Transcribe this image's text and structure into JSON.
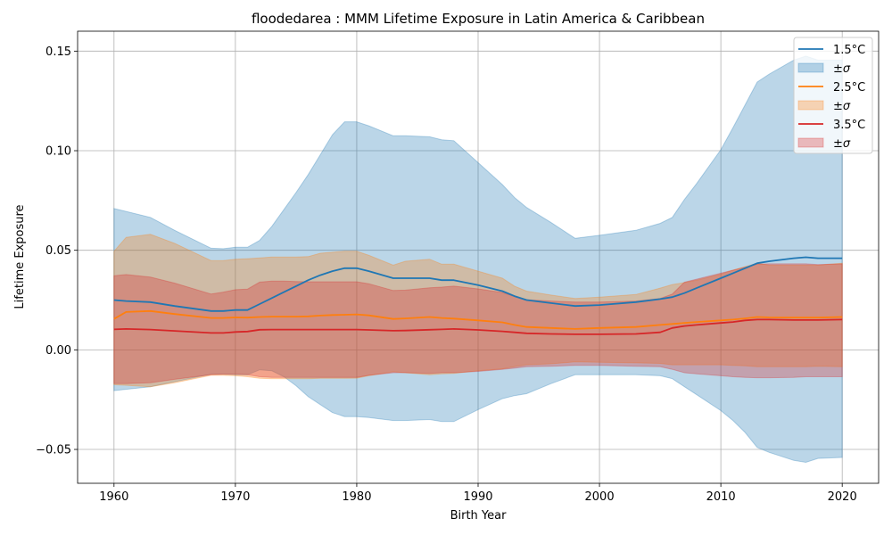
{
  "chart_data": {
    "type": "line",
    "title": "floodedarea : MMM Lifetime Exposure in Latin America & Caribbean",
    "xlabel": "Birth Year",
    "ylabel": "Lifetime Exposure",
    "xlim": [
      1957,
      2023
    ],
    "ylim": [
      -0.067,
      0.16
    ],
    "xticks": [
      1960,
      1970,
      1980,
      1990,
      2000,
      2010,
      2020
    ],
    "xtick_labels": [
      "1960",
      "1970",
      "1980",
      "1990",
      "2000",
      "2010",
      "2020"
    ],
    "yticks": [
      -0.05,
      0.0,
      0.05,
      0.1,
      0.15
    ],
    "ytick_labels": [
      "−0.05",
      "0.00",
      "0.05",
      "0.10",
      "0.15"
    ],
    "grid": true,
    "legend_position": "top-right",
    "x": [
      1960,
      1961,
      1963,
      1965,
      1968,
      1969,
      1970,
      1971,
      1972,
      1973,
      1974,
      1975,
      1976,
      1977,
      1978,
      1979,
      1980,
      1981,
      1983,
      1984,
      1986,
      1987,
      1988,
      1990,
      1992,
      1993,
      1994,
      1996,
      1998,
      2000,
      2003,
      2005,
      2006,
      2007,
      2008,
      2010,
      2011,
      2012,
      2013,
      2014,
      2016,
      2017,
      2018,
      2020
    ],
    "series": [
      {
        "name": "1.5°C",
        "color": "#1f77b4",
        "band_label": "±σ",
        "mean": [
          0.025,
          0.0245,
          0.024,
          0.022,
          0.0195,
          0.0195,
          0.02,
          0.02,
          0.023,
          0.026,
          0.029,
          0.032,
          0.035,
          0.0375,
          0.0395,
          0.041,
          0.041,
          0.0395,
          0.036,
          0.036,
          0.036,
          0.035,
          0.035,
          0.0325,
          0.0295,
          0.027,
          0.025,
          0.0235,
          0.022,
          0.0225,
          0.024,
          0.0255,
          0.0265,
          0.0285,
          0.031,
          0.036,
          0.0385,
          0.041,
          0.0435,
          0.0445,
          0.046,
          0.0465,
          0.046,
          0.046
        ],
        "upper": [
          0.071,
          0.0695,
          0.0665,
          0.06,
          0.051,
          0.0508,
          0.0515,
          0.0515,
          0.055,
          0.062,
          0.0705,
          0.079,
          0.088,
          0.098,
          0.108,
          0.1145,
          0.1145,
          0.1125,
          0.1075,
          0.1075,
          0.107,
          0.1055,
          0.105,
          0.094,
          0.083,
          0.0765,
          0.0715,
          0.064,
          0.056,
          0.0575,
          0.06,
          0.0635,
          0.0665,
          0.0755,
          0.0835,
          0.1005,
          0.1115,
          0.123,
          0.1345,
          0.1385,
          0.1455,
          0.1475,
          0.1455,
          0.1455
        ],
        "lower": [
          -0.0205,
          -0.0198,
          -0.0185,
          -0.016,
          -0.0122,
          -0.0122,
          -0.0125,
          -0.0125,
          -0.01,
          -0.0105,
          -0.0135,
          -0.018,
          -0.0235,
          -0.0275,
          -0.0315,
          -0.0335,
          -0.0335,
          -0.034,
          -0.0355,
          -0.0355,
          -0.035,
          -0.036,
          -0.036,
          -0.03,
          -0.0245,
          -0.023,
          -0.022,
          -0.017,
          -0.0125,
          -0.0125,
          -0.0125,
          -0.013,
          -0.0145,
          -0.0185,
          -0.0225,
          -0.0305,
          -0.0355,
          -0.0415,
          -0.049,
          -0.0515,
          -0.0555,
          -0.0565,
          -0.0545,
          -0.054
        ]
      },
      {
        "name": "2.5°C",
        "color": "#ff7f0e",
        "band_label": "±σ",
        "mean": [
          0.0155,
          0.019,
          0.0195,
          0.018,
          0.016,
          0.016,
          0.0163,
          0.0162,
          0.0165,
          0.0167,
          0.0167,
          0.0167,
          0.0168,
          0.0172,
          0.0175,
          0.0176,
          0.0178,
          0.0173,
          0.0155,
          0.0158,
          0.0165,
          0.016,
          0.0157,
          0.0148,
          0.0138,
          0.0125,
          0.0115,
          0.011,
          0.0105,
          0.011,
          0.0115,
          0.0125,
          0.013,
          0.0135,
          0.014,
          0.0148,
          0.0152,
          0.0158,
          0.0165,
          0.0163,
          0.0162,
          0.0162,
          0.0162,
          0.0165
        ],
        "upper": [
          0.0495,
          0.0565,
          0.058,
          0.0535,
          0.0448,
          0.0448,
          0.0455,
          0.0458,
          0.0462,
          0.0466,
          0.0466,
          0.0466,
          0.0468,
          0.0485,
          0.049,
          0.0495,
          0.0495,
          0.0475,
          0.0425,
          0.0445,
          0.0455,
          0.043,
          0.043,
          0.0395,
          0.036,
          0.032,
          0.0295,
          0.0275,
          0.0258,
          0.0265,
          0.0278,
          0.031,
          0.0328,
          0.0338,
          0.035,
          0.038,
          0.04,
          0.0418,
          0.0435,
          0.0425,
          0.0425,
          0.0425,
          0.0425,
          0.0435
        ],
        "lower": [
          -0.0175,
          -0.0178,
          -0.0185,
          -0.0165,
          -0.0128,
          -0.0128,
          -0.013,
          -0.0135,
          -0.0143,
          -0.0145,
          -0.0145,
          -0.0145,
          -0.0145,
          -0.0143,
          -0.0143,
          -0.0143,
          -0.0142,
          -0.013,
          -0.011,
          -0.0115,
          -0.0125,
          -0.012,
          -0.0118,
          -0.0105,
          -0.0095,
          -0.0085,
          -0.0075,
          -0.007,
          -0.006,
          -0.0062,
          -0.0065,
          -0.0068,
          -0.0075,
          -0.0075,
          -0.0075,
          -0.0075,
          -0.0078,
          -0.008,
          -0.0085,
          -0.0085,
          -0.0085,
          -0.0085,
          -0.0082,
          -0.0085
        ]
      },
      {
        "name": "3.5°C",
        "color": "#d62728",
        "band_label": "±σ",
        "mean": [
          0.0103,
          0.0105,
          0.0102,
          0.0095,
          0.0085,
          0.0085,
          0.009,
          0.0092,
          0.0101,
          0.0102,
          0.0102,
          0.0102,
          0.0102,
          0.0102,
          0.0102,
          0.0102,
          0.0102,
          0.01,
          0.0096,
          0.0097,
          0.0101,
          0.0103,
          0.0105,
          0.01,
          0.0093,
          0.0088,
          0.0083,
          0.008,
          0.0078,
          0.0078,
          0.008,
          0.0088,
          0.011,
          0.012,
          0.0125,
          0.0135,
          0.014,
          0.0148,
          0.0152,
          0.0152,
          0.015,
          0.015,
          0.015,
          0.0152
        ],
        "upper": [
          0.0372,
          0.0378,
          0.0365,
          0.0335,
          0.028,
          0.029,
          0.0302,
          0.0305,
          0.034,
          0.0345,
          0.0345,
          0.0343,
          0.0342,
          0.0342,
          0.0342,
          0.0342,
          0.0342,
          0.0332,
          0.0298,
          0.03,
          0.0312,
          0.0315,
          0.032,
          0.0306,
          0.0288,
          0.0268,
          0.0252,
          0.0245,
          0.024,
          0.024,
          0.0245,
          0.0258,
          0.028,
          0.034,
          0.0355,
          0.0385,
          0.04,
          0.0415,
          0.043,
          0.0432,
          0.0432,
          0.0432,
          0.0428,
          0.0432
        ],
        "lower": [
          -0.017,
          -0.017,
          -0.0165,
          -0.0148,
          -0.0125,
          -0.0122,
          -0.0122,
          -0.0125,
          -0.0135,
          -0.0138,
          -0.0138,
          -0.0138,
          -0.0138,
          -0.0138,
          -0.0138,
          -0.0138,
          -0.0138,
          -0.0128,
          -0.0115,
          -0.0115,
          -0.0118,
          -0.0115,
          -0.0115,
          -0.0108,
          -0.0098,
          -0.0092,
          -0.0085,
          -0.0082,
          -0.0078,
          -0.0078,
          -0.0082,
          -0.0085,
          -0.0098,
          -0.0115,
          -0.012,
          -0.013,
          -0.0135,
          -0.0138,
          -0.014,
          -0.014,
          -0.0138,
          -0.0135,
          -0.0135,
          -0.0135
        ]
      }
    ]
  }
}
